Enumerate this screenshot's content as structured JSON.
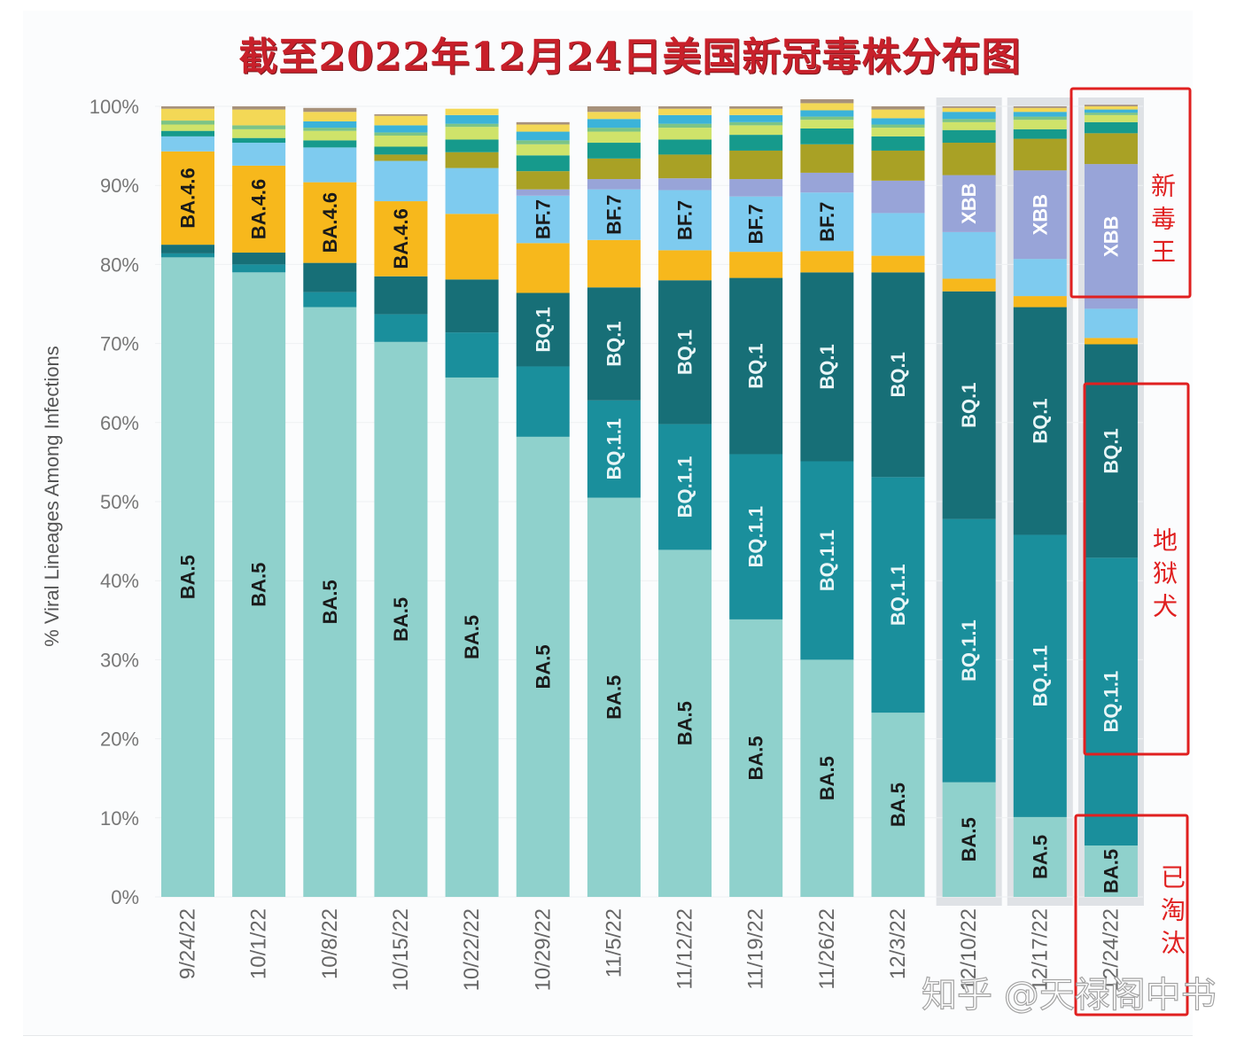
{
  "title": "截至2022年12月24日美国新冠毒株分布图",
  "watermark": "知乎 @天禄阁中书",
  "chart_data": {
    "type": "bar",
    "stacked": true,
    "title": "截至2022年12月24日美国新冠毒株分布图",
    "xlabel": "",
    "ylabel": "% Viral Lineages Among Infections",
    "ylim": [
      0,
      100
    ],
    "yticks": [
      "0%",
      "10%",
      "20%",
      "30%",
      "40%",
      "50%",
      "60%",
      "70%",
      "80%",
      "90%",
      "100%"
    ],
    "categories": [
      "9/24/22",
      "10/1/22",
      "10/8/22",
      "10/15/22",
      "10/22/22",
      "10/29/22",
      "11/5/22",
      "11/12/22",
      "11/19/22",
      "11/26/22",
      "12/3/22",
      "12/10/22",
      "12/17/22",
      "12/24/22"
    ],
    "highlighted_categories": [
      "12/10/22",
      "12/17/22",
      "12/24/22"
    ],
    "legend": "none (inline segment labels)",
    "series": [
      {
        "name": "BA.5",
        "label_shown": true,
        "color": "#8fd1cc",
        "label_color": "#1a1a1a",
        "values": [
          80.9,
          79.0,
          74.6,
          70.2,
          65.7,
          58.2,
          50.5,
          43.9,
          35.1,
          30.0,
          23.3,
          14.5,
          10.1,
          6.5
        ],
        "labels": [
          "BA.5",
          "BA.5",
          "BA.5",
          "BA.5",
          "BA.5",
          "BA.5",
          "BA.5",
          "BA.5",
          "BA.5",
          "BA.5",
          "BA.5",
          "BA.5",
          "BA.5",
          "BA.5"
        ]
      },
      {
        "name": "BQ.1.1",
        "label_shown": true,
        "color": "#1a8f9c",
        "label_color": "#e8f6f7",
        "values": [
          0.5,
          1.0,
          1.9,
          3.5,
          5.7,
          8.9,
          12.3,
          15.9,
          20.9,
          25.1,
          29.8,
          33.3,
          35.7,
          36.4
        ],
        "labels": [
          "",
          "",
          "",
          "",
          "",
          "",
          "BQ.1.1",
          "BQ.1.1",
          "BQ.1.1",
          "BQ.1.1",
          "BQ.1.1",
          "BQ.1.1",
          "BQ.1.1",
          "BQ.1.1"
        ]
      },
      {
        "name": "BQ.1",
        "label_shown": true,
        "color": "#176f77",
        "label_color": "#e8f6f7",
        "values": [
          1.1,
          1.5,
          3.7,
          4.8,
          6.7,
          9.3,
          14.3,
          18.2,
          22.3,
          23.9,
          25.9,
          28.8,
          28.8,
          27.0
        ],
        "labels": [
          "",
          "",
          "",
          "",
          "",
          "BQ.1",
          "BQ.1",
          "BQ.1",
          "BQ.1",
          "BQ.1",
          "BQ.1",
          "BQ.1",
          "BQ.1",
          "BQ.1"
        ]
      },
      {
        "name": "BA.4.6",
        "label_shown": true,
        "color": "#f7b81c",
        "label_color": "#1a1a1a",
        "values": [
          11.8,
          11.0,
          10.2,
          9.5,
          8.3,
          6.3,
          6.0,
          3.8,
          3.3,
          2.7,
          2.1,
          1.6,
          1.4,
          0.8
        ],
        "labels": [
          "BA.4.6",
          "BA.4.6",
          "BA.4.6",
          "BA.4.6",
          "",
          "",
          "",
          "",
          "",
          "",
          "",
          "",
          "",
          ""
        ]
      },
      {
        "name": "BF.7",
        "label_shown": true,
        "color": "#7ecbef",
        "label_color": "#1a1a1a",
        "values": [
          1.9,
          2.9,
          4.4,
          5.1,
          5.8,
          6.0,
          6.4,
          7.6,
          7.0,
          7.4,
          5.4,
          5.9,
          4.7,
          3.7
        ],
        "labels": [
          "",
          "",
          "",
          "",
          "",
          "BF.7",
          "BF.7",
          "BF.7",
          "BF.7",
          "BF.7",
          "",
          "",
          "",
          ""
        ]
      },
      {
        "name": "XBB",
        "label_shown": true,
        "color": "#98a4d8",
        "label_color": "#ffffff",
        "values": [
          0,
          0,
          0,
          0,
          0,
          0.8,
          1.3,
          1.5,
          2.2,
          2.5,
          4.1,
          7.2,
          11.2,
          18.3
        ],
        "labels": [
          "",
          "",
          "",
          "",
          "",
          "",
          "",
          "",
          "",
          "",
          "",
          "XBB",
          "XBB",
          "XBB"
        ]
      },
      {
        "name": "Other (olive)",
        "label_shown": false,
        "color": "#a9a125",
        "values": [
          0,
          0,
          0,
          0.8,
          2.0,
          2.3,
          2.6,
          3.0,
          3.6,
          3.6,
          3.8,
          4.1,
          4.0,
          3.9
        ],
        "labels": []
      },
      {
        "name": "Other (teal-green)",
        "label_shown": false,
        "color": "#169a8c",
        "values": [
          0.7,
          0.6,
          0.9,
          1.0,
          1.6,
          2.0,
          2.0,
          1.9,
          2.0,
          2.0,
          1.8,
          1.6,
          1.2,
          1.4
        ],
        "labels": []
      },
      {
        "name": "Other (yellow-green)",
        "label_shown": false,
        "color": "#cfe36a",
        "values": [
          0.8,
          1.1,
          1.2,
          1.4,
          1.6,
          1.4,
          1.4,
          1.5,
          1.2,
          1.1,
          1.1,
          1.0,
          1.2,
          0.9
        ],
        "labels": []
      },
      {
        "name": "Other (green)",
        "label_shown": false,
        "color": "#7cc486",
        "values": [
          0.5,
          0.5,
          0.4,
          0.4,
          0.4,
          0.5,
          0.5,
          0.5,
          0.4,
          0.4,
          0.4,
          0.4,
          0.4,
          0.3
        ],
        "labels": []
      },
      {
        "name": "Other (cyan)",
        "label_shown": false,
        "color": "#3bb3d9",
        "values": [
          0,
          0,
          0.8,
          0.9,
          1.1,
          1.1,
          1.1,
          1.1,
          0.9,
          0.8,
          0.8,
          0.9,
          0.6,
          0.4
        ],
        "labels": []
      },
      {
        "name": "Other (yellow)",
        "label_shown": false,
        "color": "#f3d856",
        "values": [
          1.5,
          2.0,
          1.2,
          1.2,
          0.8,
          0.9,
          0.9,
          0.8,
          0.8,
          0.9,
          1.1,
          0.5,
          0.5,
          0.4
        ],
        "labels": []
      },
      {
        "name": "Other (top)",
        "label_shown": false,
        "color": "#a7917b",
        "values": [
          0.3,
          0.4,
          0.5,
          0.2,
          0.0,
          0.3,
          0.7,
          0.3,
          0.3,
          0.5,
          0.4,
          0.2,
          0.2,
          0.2
        ],
        "labels": []
      }
    ],
    "annotations": [
      {
        "text": "新毒王",
        "target": "XBB in 12/24/22",
        "color": "#e02020"
      },
      {
        "text": "地狱犬",
        "target": "BQ.1 and BQ.1.1 in 12/24/22",
        "color": "#e02020"
      },
      {
        "text": "已淘汰",
        "target": "BA.5 in 12/24/22",
        "color": "#e02020"
      }
    ]
  }
}
